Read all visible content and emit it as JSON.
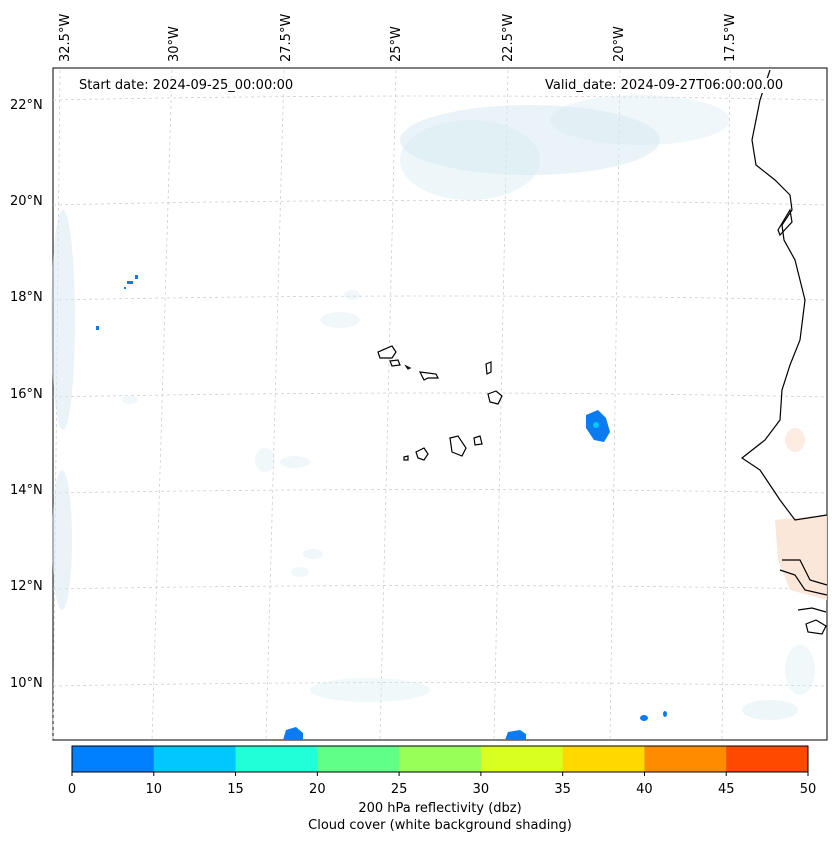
{
  "map": {
    "annotations": {
      "start": "Start date: 2024-09-25_00:00:00",
      "valid": "Valid_date: 2024-09-27T06:00:00.00"
    },
    "lon_labels": [
      "32.5°W",
      "30°W",
      "27.5°W",
      "25°W",
      "22.5°W",
      "20°W",
      "17.5°W"
    ],
    "lat_labels": [
      "22°N",
      "20°N",
      "18°N",
      "16°N",
      "14°N",
      "12°N",
      "10°N"
    ],
    "colorbar": {
      "ticks": [
        "0",
        "10",
        "15",
        "20",
        "25",
        "30",
        "35",
        "40",
        "45",
        "50"
      ],
      "colors": [
        "#0080ff",
        "#00c8ff",
        "#20ffd8",
        "#60ff88",
        "#98ff58",
        "#d8ff20",
        "#ffd800",
        "#ff8c00",
        "#ff4800"
      ],
      "label_line1": "200 hPa reflectivity (dbz)",
      "label_line2": "Cloud cover (white background shading)"
    },
    "colors": {
      "cloud": "#d6eaf2",
      "land_warm": "#fbe4d6",
      "coast": "#000000",
      "reflectivity": "#0a7bf0"
    }
  }
}
